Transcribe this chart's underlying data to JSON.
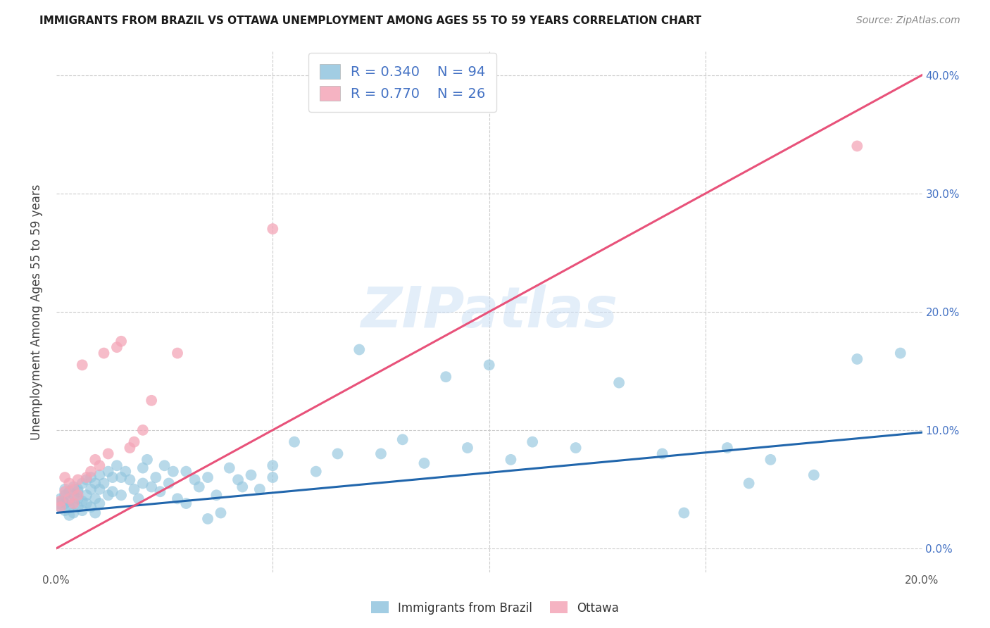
{
  "title": "IMMIGRANTS FROM BRAZIL VS OTTAWA UNEMPLOYMENT AMONG AGES 55 TO 59 YEARS CORRELATION CHART",
  "source": "Source: ZipAtlas.com",
  "ylabel": "Unemployment Among Ages 55 to 59 years",
  "brazil_R": 0.34,
  "brazil_N": 94,
  "ottawa_R": 0.77,
  "ottawa_N": 26,
  "brazil_color": "#92c5de",
  "ottawa_color": "#f4a6b8",
  "brazil_line_color": "#2166ac",
  "ottawa_line_color": "#e8527a",
  "legend_label_brazil": "Immigrants from Brazil",
  "legend_label_ottawa": "Ottawa",
  "watermark": "ZIPatlas",
  "xlim": [
    0.0,
    0.2
  ],
  "ylim": [
    -0.02,
    0.42
  ],
  "brazil_line_x0": 0.0,
  "brazil_line_y0": 0.03,
  "brazil_line_x1": 0.2,
  "brazil_line_y1": 0.098,
  "ottawa_line_x0": 0.0,
  "ottawa_line_y0": 0.0,
  "ottawa_line_x1": 0.2,
  "ottawa_line_y1": 0.4,
  "brazil_x": [
    0.0005,
    0.001,
    0.001,
    0.0015,
    0.002,
    0.002,
    0.002,
    0.002,
    0.003,
    0.003,
    0.003,
    0.003,
    0.004,
    0.004,
    0.004,
    0.004,
    0.005,
    0.005,
    0.005,
    0.005,
    0.006,
    0.006,
    0.006,
    0.007,
    0.007,
    0.007,
    0.008,
    0.008,
    0.008,
    0.009,
    0.009,
    0.009,
    0.01,
    0.01,
    0.01,
    0.011,
    0.012,
    0.012,
    0.013,
    0.013,
    0.014,
    0.015,
    0.015,
    0.016,
    0.017,
    0.018,
    0.019,
    0.02,
    0.02,
    0.021,
    0.022,
    0.023,
    0.024,
    0.025,
    0.026,
    0.027,
    0.028,
    0.03,
    0.03,
    0.032,
    0.033,
    0.035,
    0.035,
    0.037,
    0.038,
    0.04,
    0.042,
    0.043,
    0.045,
    0.047,
    0.05,
    0.05,
    0.055,
    0.06,
    0.065,
    0.07,
    0.075,
    0.08,
    0.085,
    0.09,
    0.095,
    0.1,
    0.105,
    0.11,
    0.12,
    0.13,
    0.14,
    0.145,
    0.155,
    0.16,
    0.165,
    0.175,
    0.185,
    0.195
  ],
  "brazil_y": [
    0.038,
    0.042,
    0.035,
    0.04,
    0.05,
    0.038,
    0.032,
    0.045,
    0.048,
    0.035,
    0.04,
    0.028,
    0.052,
    0.038,
    0.045,
    0.03,
    0.05,
    0.042,
    0.035,
    0.048,
    0.055,
    0.04,
    0.032,
    0.058,
    0.045,
    0.038,
    0.06,
    0.05,
    0.035,
    0.055,
    0.042,
    0.03,
    0.062,
    0.05,
    0.038,
    0.055,
    0.065,
    0.045,
    0.06,
    0.048,
    0.07,
    0.06,
    0.045,
    0.065,
    0.058,
    0.05,
    0.042,
    0.068,
    0.055,
    0.075,
    0.052,
    0.06,
    0.048,
    0.07,
    0.055,
    0.065,
    0.042,
    0.065,
    0.038,
    0.058,
    0.052,
    0.025,
    0.06,
    0.045,
    0.03,
    0.068,
    0.058,
    0.052,
    0.062,
    0.05,
    0.07,
    0.06,
    0.09,
    0.065,
    0.08,
    0.168,
    0.08,
    0.092,
    0.072,
    0.145,
    0.085,
    0.155,
    0.075,
    0.09,
    0.085,
    0.14,
    0.08,
    0.03,
    0.085,
    0.055,
    0.075,
    0.062,
    0.16,
    0.165
  ],
  "ottawa_x": [
    0.001,
    0.001,
    0.002,
    0.002,
    0.003,
    0.003,
    0.004,
    0.004,
    0.005,
    0.005,
    0.006,
    0.007,
    0.008,
    0.009,
    0.01,
    0.011,
    0.012,
    0.014,
    0.015,
    0.017,
    0.018,
    0.02,
    0.022,
    0.028,
    0.05,
    0.185
  ],
  "ottawa_y": [
    0.04,
    0.035,
    0.048,
    0.06,
    0.042,
    0.055,
    0.05,
    0.038,
    0.058,
    0.045,
    0.155,
    0.06,
    0.065,
    0.075,
    0.07,
    0.165,
    0.08,
    0.17,
    0.175,
    0.085,
    0.09,
    0.1,
    0.125,
    0.165,
    0.27,
    0.34
  ]
}
